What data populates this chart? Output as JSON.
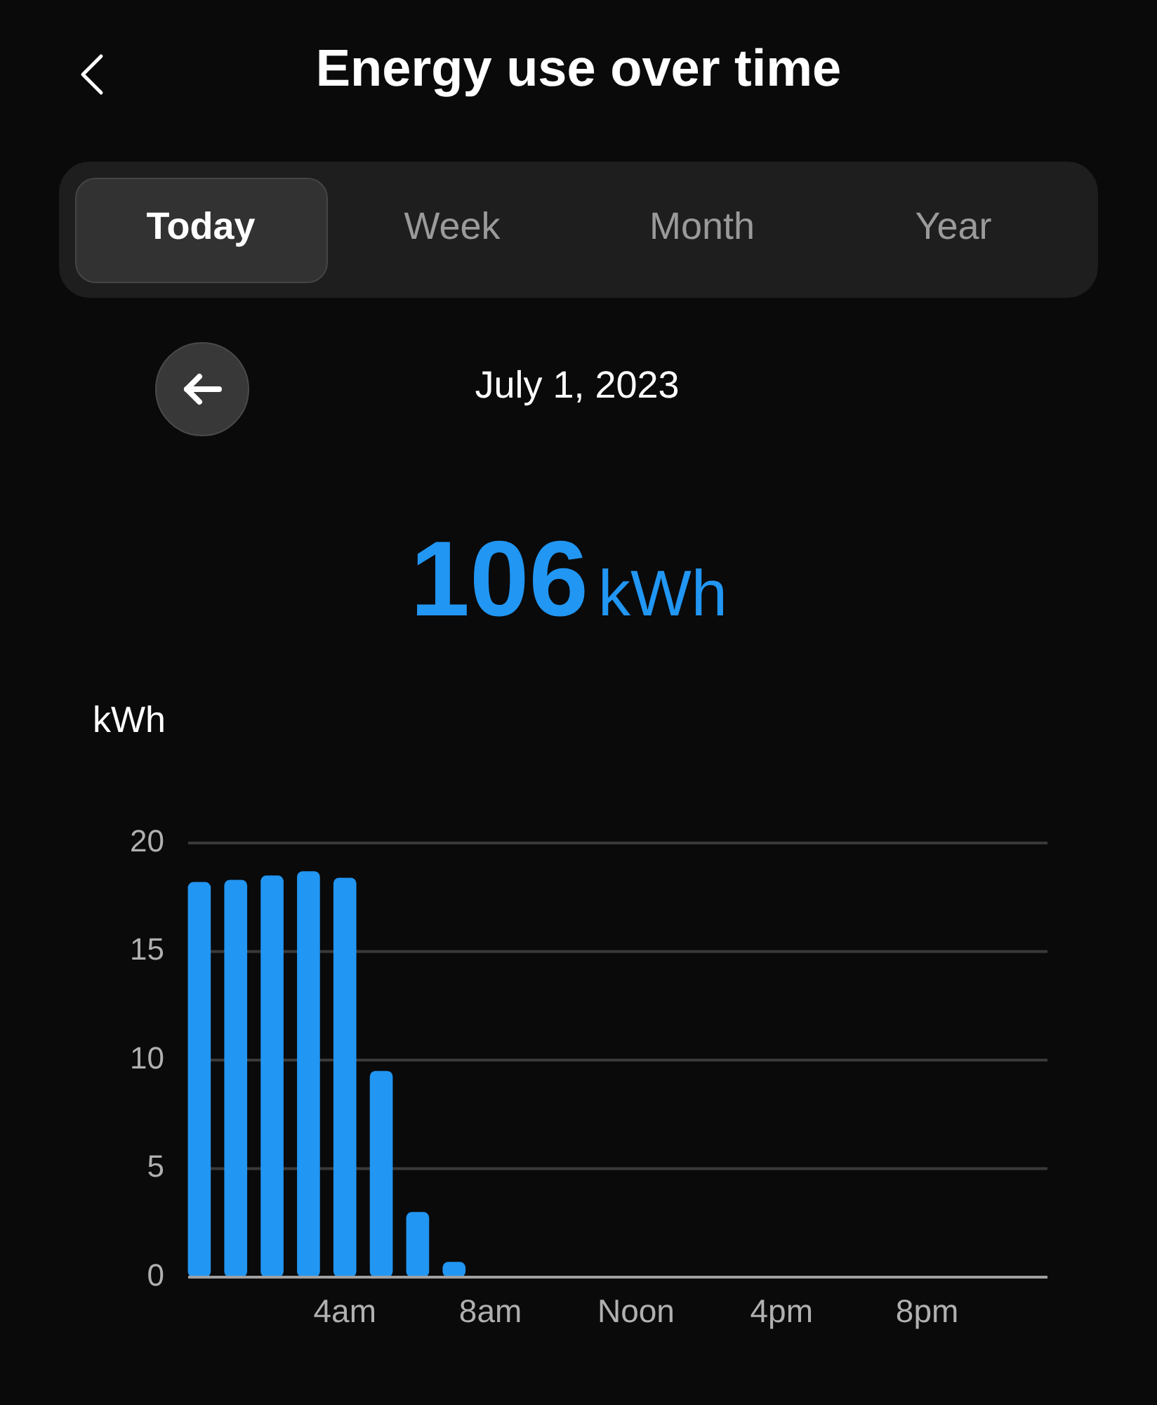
{
  "chart_data": {
    "type": "bar",
    "title": "Energy use over time",
    "subtitle": "July 1, 2023",
    "ylabel": "kWh",
    "annotations": [
      "Today",
      "Week",
      "Month",
      "Year",
      "106",
      "kWh"
    ],
    "categories": [
      null,
      null,
      null,
      null,
      "4am",
      null,
      null,
      null,
      "8am",
      null,
      null,
      null,
      "Noon",
      null,
      null,
      null,
      "4pm",
      null,
      null,
      null,
      "8pm",
      null,
      null,
      null
    ],
    "values": [
      18.2,
      18.3,
      18.5,
      18.7,
      18.4,
      9.5,
      3.0,
      0.7,
      null,
      null,
      null,
      null,
      null,
      null,
      null,
      null,
      null,
      null,
      null,
      null,
      null,
      null,
      null,
      null
    ],
    "color": "#2196f3",
    "ylim": [
      0,
      20
    ],
    "yticks": [
      0,
      5,
      10,
      15,
      20
    ],
    "grid": "y"
  }
}
